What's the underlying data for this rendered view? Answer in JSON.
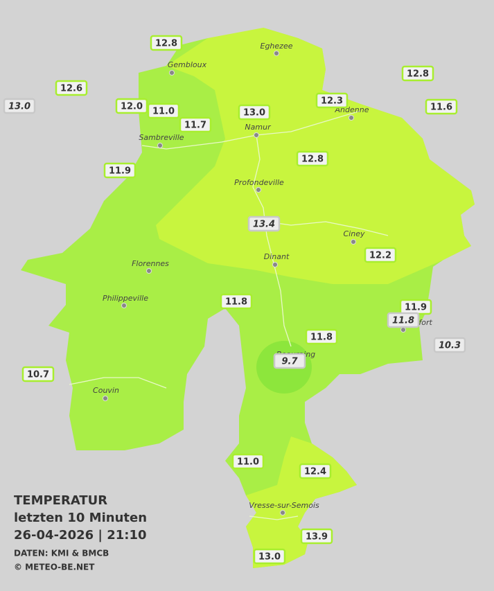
{
  "header": {
    "title": "TEMPERATUR",
    "subtitle": "letzten 10 Minuten",
    "datetime": "26-04-2026  |  21:10",
    "source": "DATEN: KMI & BMCB",
    "copyright": "© METEO-BE.NET"
  },
  "cities": [
    {
      "name": "Eghezee"
    },
    {
      "name": "Gembloux"
    },
    {
      "name": "Andenne"
    },
    {
      "name": "Namur"
    },
    {
      "name": "Sambreville"
    },
    {
      "name": "Profondeville"
    },
    {
      "name": "Ciney"
    },
    {
      "name": "Dinant"
    },
    {
      "name": "Florennes"
    },
    {
      "name": "Philippeville"
    },
    {
      "name": "Rochefort"
    },
    {
      "name": "Beauraing"
    },
    {
      "name": "Couvin"
    },
    {
      "name": "Vresse-sur-Semois"
    }
  ],
  "stations": [
    {
      "value": "12.8",
      "italic": false
    },
    {
      "value": "12.6",
      "italic": false
    },
    {
      "value": "13.0",
      "italic": true
    },
    {
      "value": "12.0",
      "italic": false
    },
    {
      "value": "11.0",
      "italic": false
    },
    {
      "value": "11.7",
      "italic": false
    },
    {
      "value": "13.0",
      "italic": false
    },
    {
      "value": "12.3",
      "italic": false
    },
    {
      "value": "12.8",
      "italic": false
    },
    {
      "value": "11.6",
      "italic": false
    },
    {
      "value": "11.9",
      "italic": false
    },
    {
      "value": "12.8",
      "italic": false
    },
    {
      "value": "13.4",
      "italic": true
    },
    {
      "value": "12.2",
      "italic": false
    },
    {
      "value": "11.8",
      "italic": false
    },
    {
      "value": "11.9",
      "italic": false
    },
    {
      "value": "11.8",
      "italic": true
    },
    {
      "value": "11.8",
      "italic": false
    },
    {
      "value": "10.3",
      "italic": true
    },
    {
      "value": "9.7",
      "italic": true
    },
    {
      "value": "10.7",
      "italic": false
    },
    {
      "value": "11.0",
      "italic": false
    },
    {
      "value": "12.4",
      "italic": false
    },
    {
      "value": "13.9",
      "italic": false
    },
    {
      "value": "13.0",
      "italic": false
    }
  ]
}
